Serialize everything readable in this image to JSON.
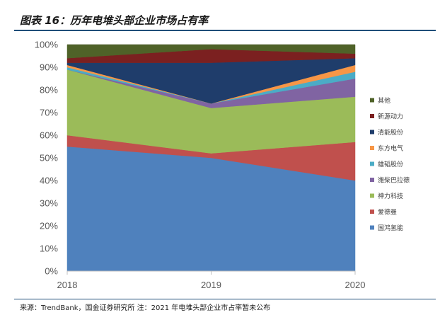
{
  "header": {
    "title": "图表 16：历年电堆头部企业市场占有率"
  },
  "footer": {
    "source": "来源：TrendBank，国金证券研究所 注：2021 年电堆头部企业市占率暂未公布"
  },
  "chart_data": {
    "type": "area",
    "stacked": true,
    "title": "图表 16：历年电堆头部企业市场占有率",
    "categories": [
      "2018",
      "2019",
      "2020"
    ],
    "ylim": [
      0,
      100
    ],
    "yticks": [
      "0%",
      "10%",
      "20%",
      "30%",
      "40%",
      "50%",
      "60%",
      "70%",
      "80%",
      "90%",
      "100%"
    ],
    "legend_position": "right",
    "series": [
      {
        "name": "国鸿氢能",
        "color": "#4f81bd",
        "values": [
          55,
          50,
          40
        ]
      },
      {
        "name": "爱德曼",
        "color": "#c0504d",
        "values": [
          5,
          2,
          17
        ]
      },
      {
        "name": "神力科技",
        "color": "#9bbb59",
        "values": [
          29,
          20,
          20
        ]
      },
      {
        "name": "潍柴巴拉德",
        "color": "#8064a2",
        "values": [
          0,
          2,
          8
        ]
      },
      {
        "name": "雄韬股份",
        "color": "#4bacc6",
        "values": [
          1,
          0,
          3
        ]
      },
      {
        "name": "东方电气",
        "color": "#f79646",
        "values": [
          1,
          0,
          3
        ]
      },
      {
        "name": "清能股份",
        "color": "#1f3d6b",
        "values": [
          1,
          18,
          3
        ]
      },
      {
        "name": "新源动力",
        "color": "#7b2020",
        "values": [
          2,
          6,
          2
        ]
      },
      {
        "name": "其他",
        "color": "#4f6228",
        "values": [
          6,
          2,
          4
        ]
      }
    ]
  }
}
